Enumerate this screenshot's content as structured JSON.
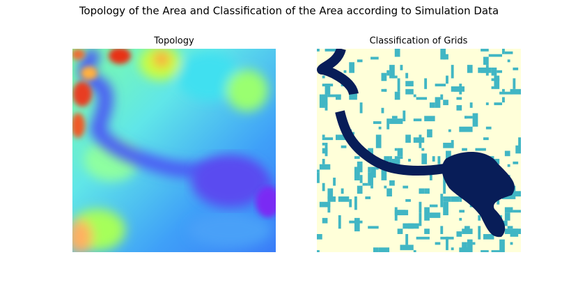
{
  "title": "Topology of the Area and Classification of the Area according to Simulation Data",
  "chart_data": [
    {
      "type": "heatmap",
      "title": "Topology"
    },
    {
      "type": "heatmap",
      "title": "Classification of Grids"
    }
  ]
}
